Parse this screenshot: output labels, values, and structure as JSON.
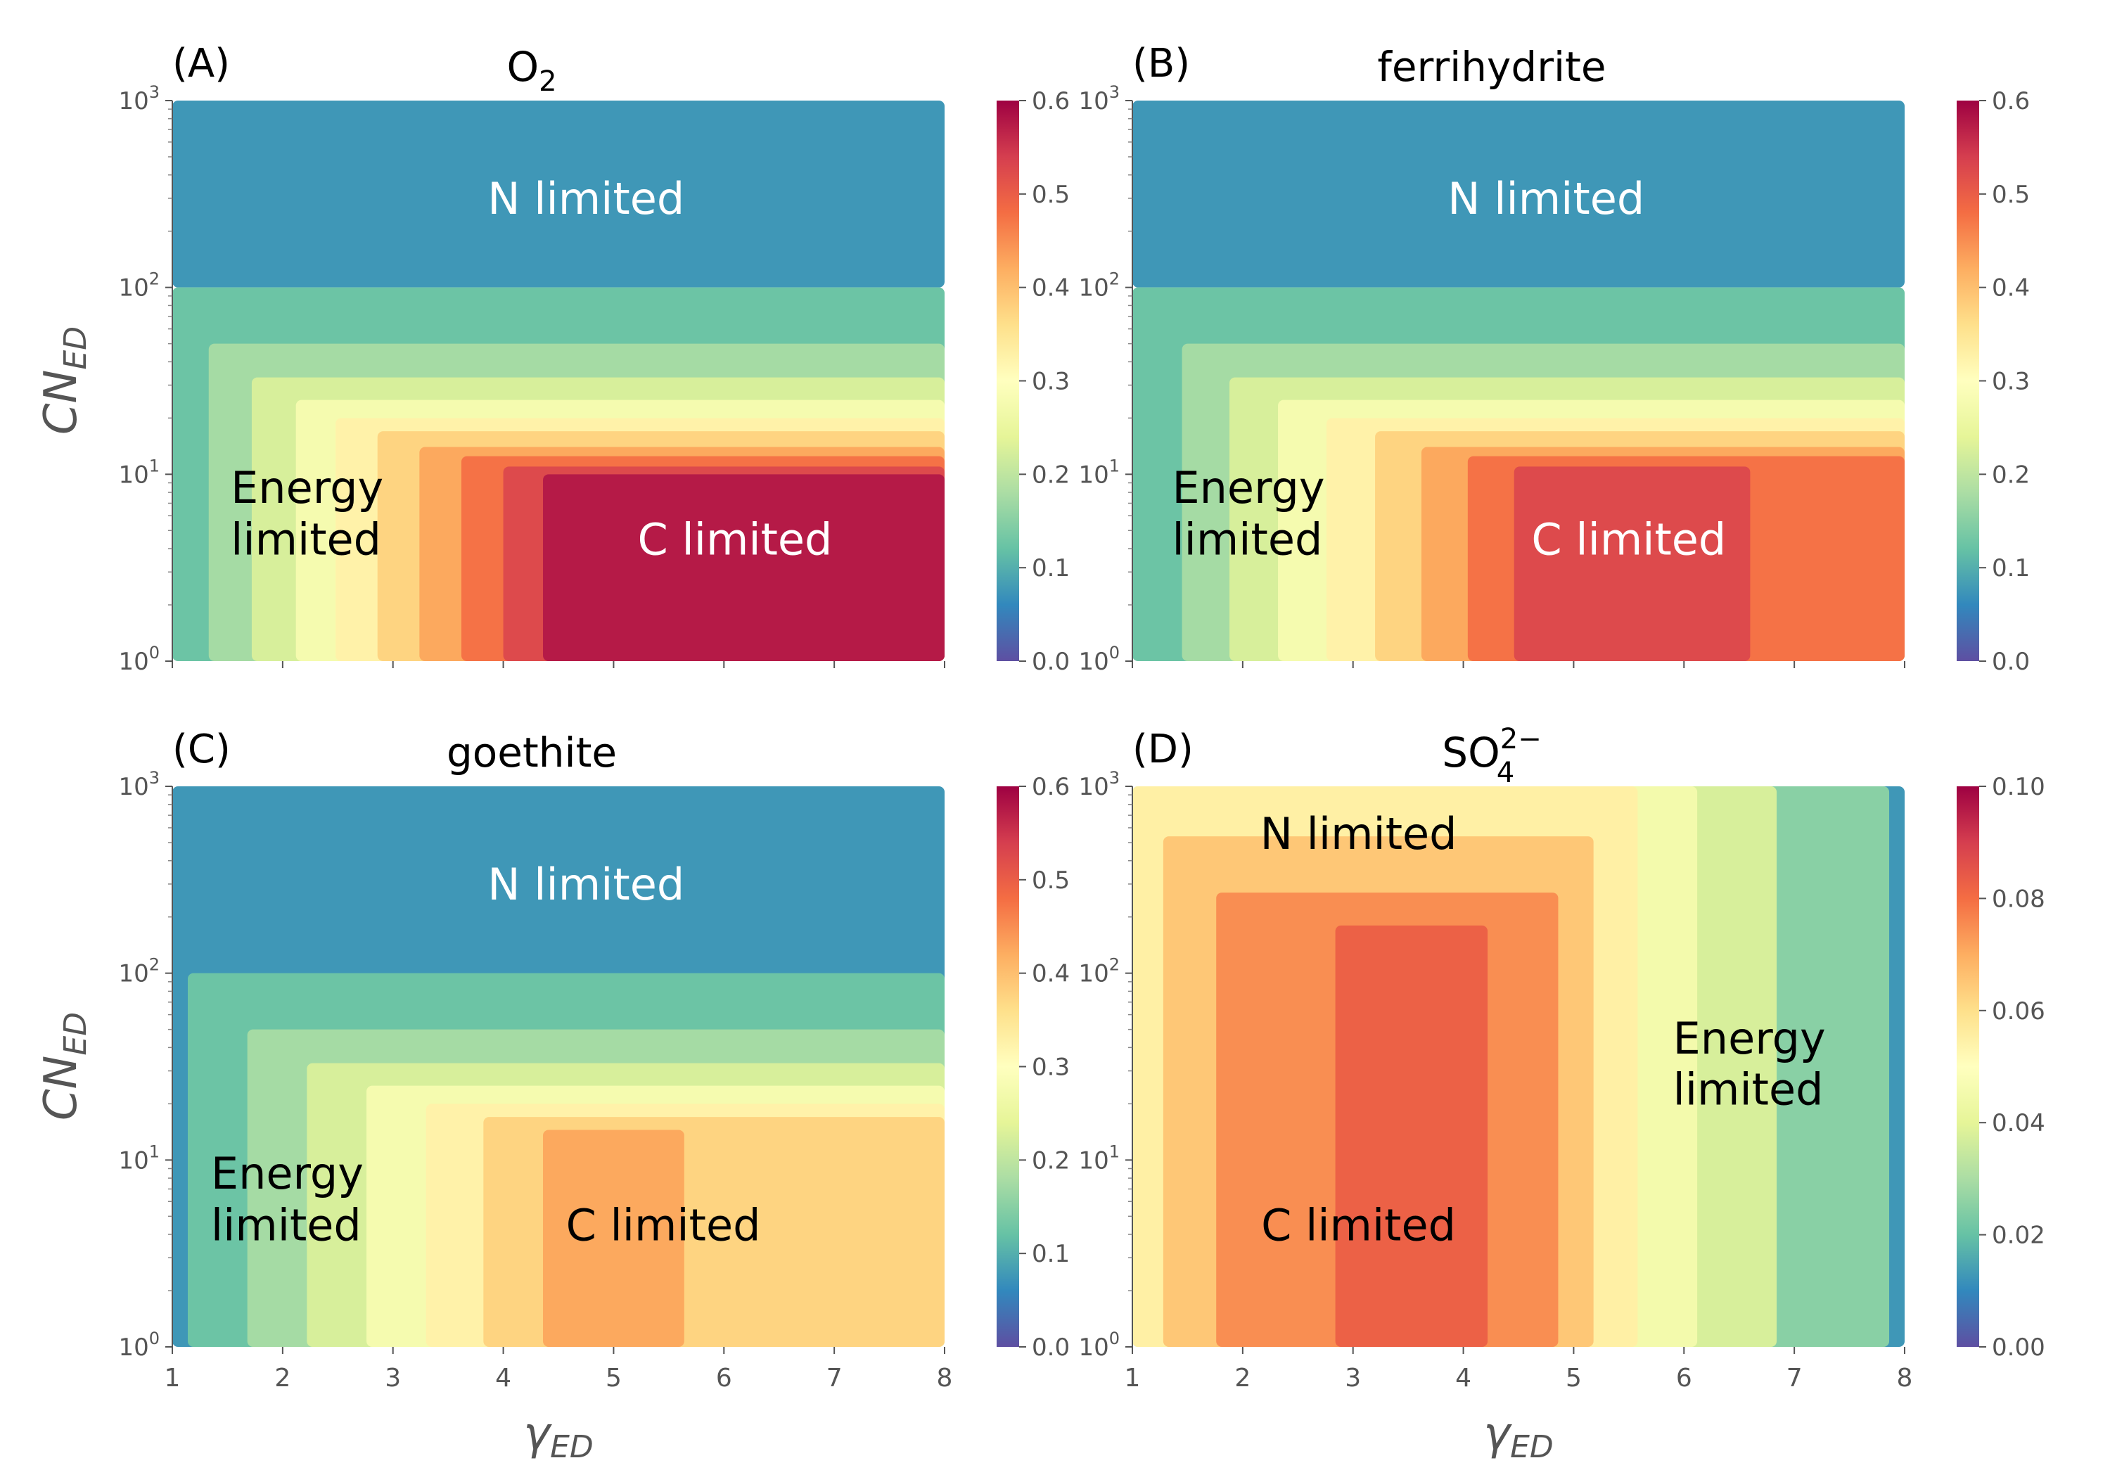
{
  "figure": {
    "ylabel_base": "CN",
    "ylabel_sub": "ED",
    "xlabel_base": "γ",
    "xlabel_sub": "ED"
  },
  "chart_data": [
    {
      "type": "heatmap",
      "panel": "(A)",
      "title": "O",
      "title_sub": "2",
      "title_sup": "",
      "xlim": [
        1,
        8
      ],
      "ylim": [
        1,
        1000
      ],
      "yscale": "log",
      "x_ticks": [
        "1",
        "2",
        "3",
        "4",
        "5",
        "6",
        "7",
        "8"
      ],
      "y_ticks": [
        "10",
        "10",
        "10",
        "10"
      ],
      "y_tick_exps": [
        "0",
        "1",
        "2",
        "3"
      ],
      "colorbar": {
        "range": [
          0,
          0.6
        ],
        "ticks": [
          "0.0",
          "0.1",
          "0.2",
          "0.3",
          "0.4",
          "0.5",
          "0.6"
        ],
        "colormap": "Spectral_r"
      },
      "regions": [
        {
          "x": [
            1,
            8
          ],
          "y": [
            100,
            1000
          ],
          "value": 0.075
        },
        {
          "x": [
            1,
            8
          ],
          "y": [
            1,
            100
          ],
          "value": 0.125
        },
        {
          "x": [
            1.33,
            8
          ],
          "y": [
            1,
            50
          ],
          "value": 0.175
        },
        {
          "x": [
            1.72,
            8
          ],
          "y": [
            1,
            33
          ],
          "value": 0.225
        },
        {
          "x": [
            2.12,
            8
          ],
          "y": [
            1,
            25
          ],
          "value": 0.275
        },
        {
          "x": [
            2.48,
            8
          ],
          "y": [
            1,
            20
          ],
          "value": 0.325
        },
        {
          "x": [
            2.86,
            8
          ],
          "y": [
            1,
            17
          ],
          "value": 0.375
        },
        {
          "x": [
            3.24,
            8
          ],
          "y": [
            1,
            14
          ],
          "value": 0.425
        },
        {
          "x": [
            3.62,
            8
          ],
          "y": [
            1,
            12.5
          ],
          "value": 0.475
        },
        {
          "x": [
            4.0,
            8
          ],
          "y": [
            1,
            11
          ],
          "value": 0.525
        },
        {
          "x": [
            4.36,
            8
          ],
          "y": [
            1,
            10
          ],
          "value": 0.575
        }
      ],
      "annotations": [
        {
          "text": "N limited",
          "x": 4.75,
          "y": 300,
          "color": "white",
          "anchor": "middle"
        },
        {
          "text": "Energy",
          "x": 1.53,
          "y": 8.5,
          "color": "black",
          "anchor": "start"
        },
        {
          "text": "limited",
          "x": 1.53,
          "y": 4.5,
          "color": "black",
          "anchor": "start"
        },
        {
          "text": "C limited",
          "x": 6.1,
          "y": 4.5,
          "color": "white",
          "anchor": "middle"
        }
      ]
    },
    {
      "type": "heatmap",
      "panel": "(B)",
      "title": "ferrihydrite",
      "title_sub": "",
      "title_sup": "",
      "xlim": [
        1,
        8
      ],
      "ylim": [
        1,
        1000
      ],
      "yscale": "log",
      "x_ticks": [
        "1",
        "2",
        "3",
        "4",
        "5",
        "6",
        "7",
        "8"
      ],
      "y_ticks": [
        "10",
        "10",
        "10",
        "10"
      ],
      "y_tick_exps": [
        "0",
        "1",
        "2",
        "3"
      ],
      "colorbar": {
        "range": [
          0,
          0.6
        ],
        "ticks": [
          "0.0",
          "0.1",
          "0.2",
          "0.3",
          "0.4",
          "0.5",
          "0.6"
        ],
        "colormap": "Spectral_r"
      },
      "regions": [
        {
          "x": [
            1,
            8
          ],
          "y": [
            100,
            1000
          ],
          "value": 0.075
        },
        {
          "x": [
            1,
            8
          ],
          "y": [
            1,
            100
          ],
          "value": 0.125
        },
        {
          "x": [
            1.45,
            8
          ],
          "y": [
            1,
            50
          ],
          "value": 0.175
        },
        {
          "x": [
            1.88,
            8
          ],
          "y": [
            1,
            33
          ],
          "value": 0.225
        },
        {
          "x": [
            2.32,
            8
          ],
          "y": [
            1,
            25
          ],
          "value": 0.275
        },
        {
          "x": [
            2.76,
            8
          ],
          "y": [
            1,
            20
          ],
          "value": 0.325
        },
        {
          "x": [
            3.2,
            8
          ],
          "y": [
            1,
            17
          ],
          "value": 0.375
        },
        {
          "x": [
            3.62,
            8
          ],
          "y": [
            1,
            14
          ],
          "value": 0.425
        },
        {
          "x": [
            4.04,
            8
          ],
          "y": [
            1,
            12.5
          ],
          "value": 0.475
        },
        {
          "x": [
            4.46,
            6.6
          ],
          "y": [
            1,
            11
          ],
          "value": 0.525
        }
      ],
      "annotations": [
        {
          "text": "N limited",
          "x": 4.75,
          "y": 300,
          "color": "white",
          "anchor": "middle"
        },
        {
          "text": "Energy",
          "x": 1.36,
          "y": 8.5,
          "color": "black",
          "anchor": "start"
        },
        {
          "text": "limited",
          "x": 1.36,
          "y": 4.5,
          "color": "black",
          "anchor": "start"
        },
        {
          "text": "C limited",
          "x": 5.5,
          "y": 4.5,
          "color": "white",
          "anchor": "middle"
        }
      ]
    },
    {
      "type": "heatmap",
      "panel": "(C)",
      "title": "goethite",
      "title_sub": "",
      "title_sup": "",
      "xlim": [
        1,
        8
      ],
      "ylim": [
        1,
        1000
      ],
      "yscale": "log",
      "x_ticks": [
        "1",
        "2",
        "3",
        "4",
        "5",
        "6",
        "7",
        "8"
      ],
      "y_ticks": [
        "10",
        "10",
        "10",
        "10"
      ],
      "y_tick_exps": [
        "0",
        "1",
        "2",
        "3"
      ],
      "colorbar": {
        "range": [
          0,
          0.6
        ],
        "ticks": [
          "0.0",
          "0.1",
          "0.2",
          "0.3",
          "0.4",
          "0.5",
          "0.6"
        ],
        "colormap": "Spectral_r"
      },
      "regions": [
        {
          "x": [
            1,
            8
          ],
          "y": [
            1,
            1000
          ],
          "value": 0.075
        },
        {
          "x": [
            1.14,
            8
          ],
          "y": [
            1,
            100
          ],
          "value": 0.125
        },
        {
          "x": [
            1.68,
            8
          ],
          "y": [
            1,
            50
          ],
          "value": 0.175
        },
        {
          "x": [
            2.22,
            8
          ],
          "y": [
            1,
            33
          ],
          "value": 0.225
        },
        {
          "x": [
            2.76,
            8
          ],
          "y": [
            1,
            25
          ],
          "value": 0.275
        },
        {
          "x": [
            3.3,
            8
          ],
          "y": [
            1,
            20
          ],
          "value": 0.325
        },
        {
          "x": [
            3.82,
            8
          ],
          "y": [
            1,
            17
          ],
          "value": 0.375
        },
        {
          "x": [
            4.36,
            5.64
          ],
          "y": [
            1,
            14.5
          ],
          "value": 0.425
        }
      ],
      "annotations": [
        {
          "text": "N limited",
          "x": 4.75,
          "y": 300,
          "color": "white",
          "anchor": "middle"
        },
        {
          "text": "Energy",
          "x": 1.35,
          "y": 8.5,
          "color": "black",
          "anchor": "start"
        },
        {
          "text": "limited",
          "x": 1.35,
          "y": 4.5,
          "color": "black",
          "anchor": "start"
        },
        {
          "text": "C limited",
          "x": 5.45,
          "y": 4.5,
          "color": "black",
          "anchor": "middle"
        }
      ]
    },
    {
      "type": "heatmap",
      "panel": "(D)",
      "title": "SO",
      "title_sub": "4",
      "title_sup": "2−",
      "xlim": [
        1,
        8
      ],
      "ylim": [
        1,
        1000
      ],
      "yscale": "log",
      "x_ticks": [
        "1",
        "2",
        "3",
        "4",
        "5",
        "6",
        "7",
        "8"
      ],
      "y_ticks": [
        "10",
        "10",
        "10",
        "10"
      ],
      "y_tick_exps": [
        "0",
        "1",
        "2",
        "3"
      ],
      "colorbar": {
        "range": [
          0,
          0.1
        ],
        "ticks": [
          "0.00",
          "0.02",
          "0.04",
          "0.06",
          "0.08",
          "0.10"
        ],
        "colormap": "Spectral_r"
      },
      "regions": [
        {
          "x": [
            1,
            8
          ],
          "y": [
            1,
            1000
          ],
          "value": 0.0125
        },
        {
          "x": [
            1,
            7.86
          ],
          "y": [
            1,
            1000
          ],
          "value": 0.025
        },
        {
          "x": [
            1,
            6.84
          ],
          "y": [
            1,
            1000
          ],
          "value": 0.0375
        },
        {
          "x": [
            1,
            6.12
          ],
          "y": [
            1,
            1000
          ],
          "value": 0.045
        },
        {
          "x": [
            1,
            5.58
          ],
          "y": [
            1,
            1000
          ],
          "value": 0.055
        },
        {
          "x": [
            1.28,
            5.18
          ],
          "y": [
            1,
            540
          ],
          "value": 0.065
        },
        {
          "x": [
            1.76,
            4.86
          ],
          "y": [
            1,
            270
          ],
          "value": 0.075
        },
        {
          "x": [
            2.84,
            4.22
          ],
          "y": [
            1,
            180
          ],
          "value": 0.0825
        }
      ],
      "annotations": [
        {
          "text": "N limited",
          "x": 3.05,
          "y": 560,
          "color": "black",
          "anchor": "middle"
        },
        {
          "text": "Energy",
          "x": 5.9,
          "y": 45,
          "color": "black",
          "anchor": "start"
        },
        {
          "text": "limited",
          "x": 5.9,
          "y": 24,
          "color": "black",
          "anchor": "start"
        },
        {
          "text": "C limited",
          "x": 3.05,
          "y": 4.5,
          "color": "black",
          "anchor": "middle"
        }
      ]
    }
  ]
}
